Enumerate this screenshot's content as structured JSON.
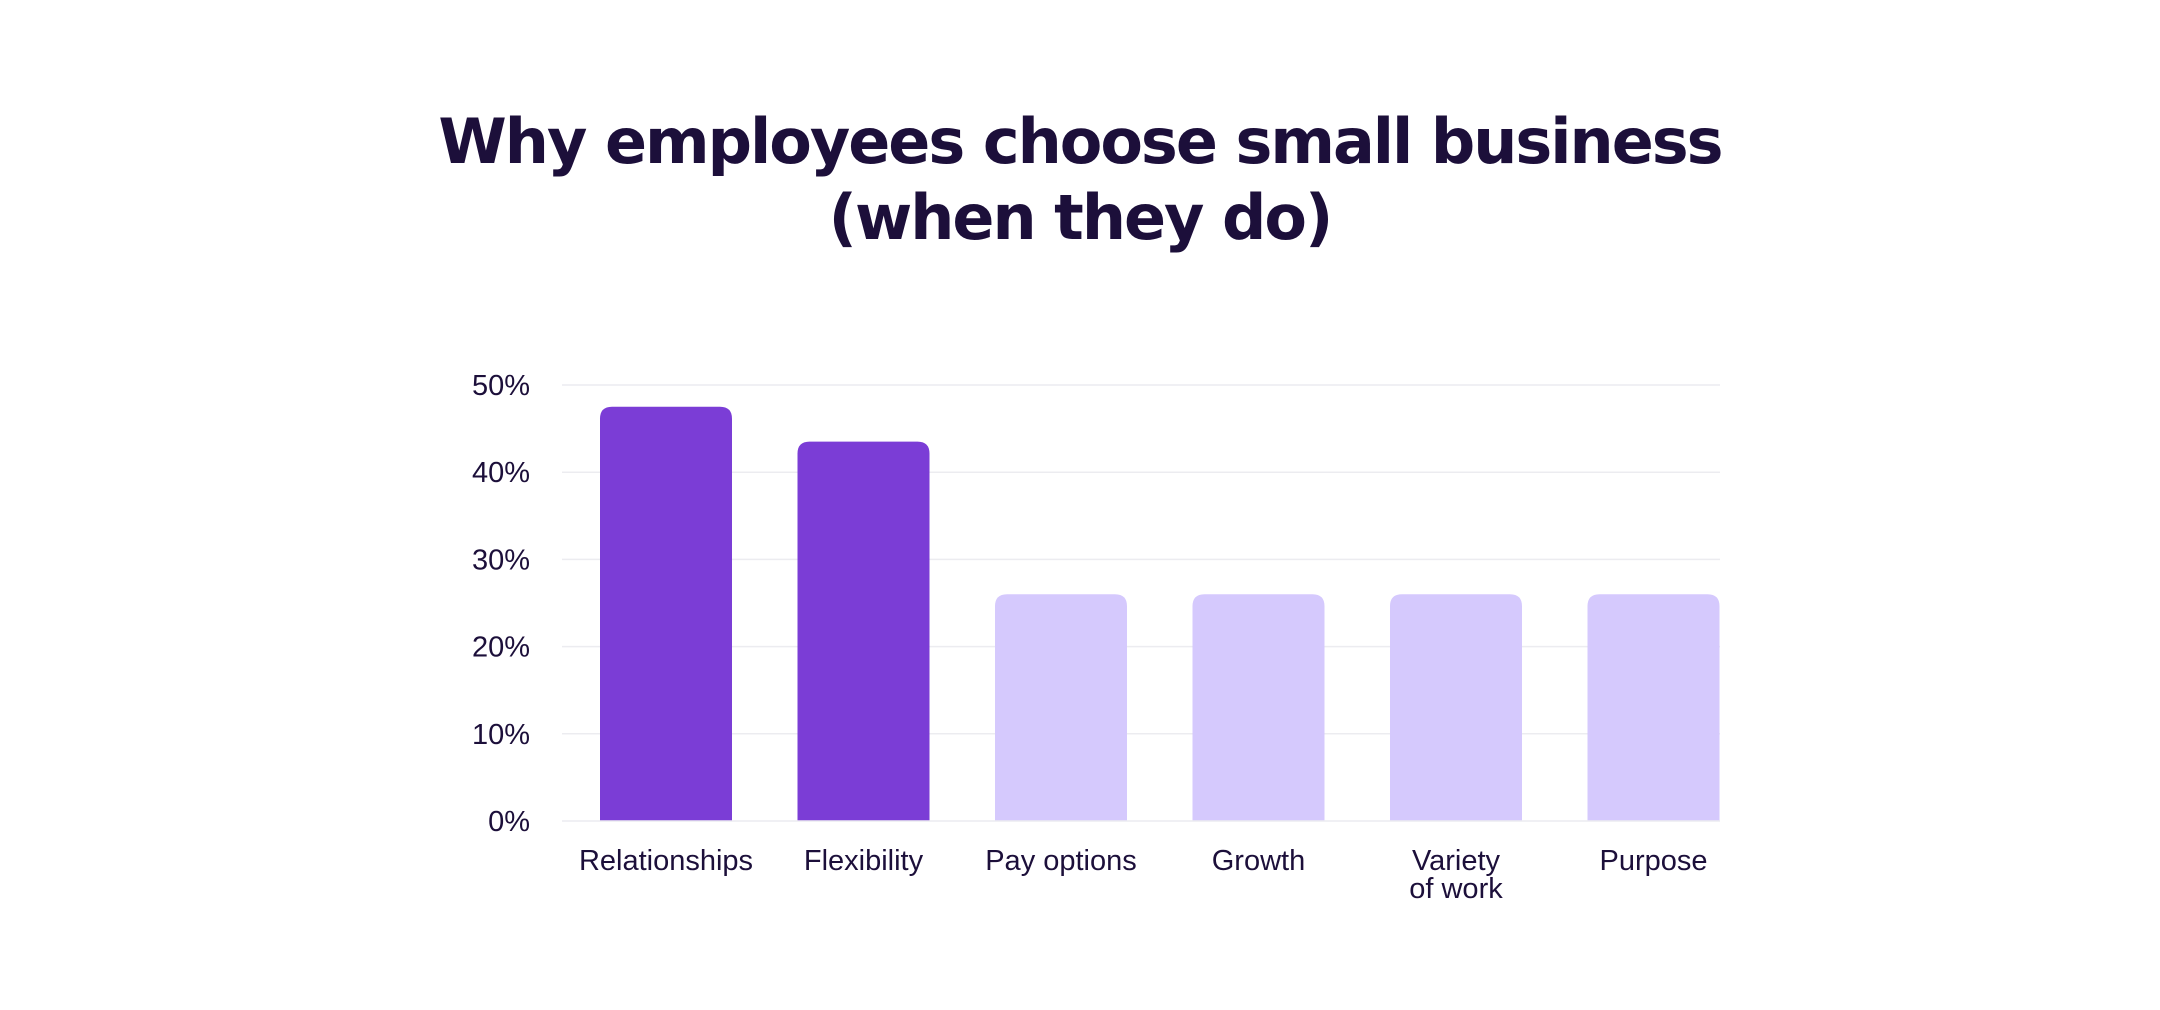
{
  "chart_data": {
    "type": "bar",
    "title": [
      "Why employees choose small business",
      "(when they do)"
    ],
    "categories": [
      [
        "Relationships"
      ],
      [
        "Flexibility"
      ],
      [
        "Pay options"
      ],
      [
        "Growth"
      ],
      [
        "Variety",
        "of work"
      ],
      [
        "Purpose"
      ]
    ],
    "values": [
      47.5,
      43.5,
      26,
      26,
      26,
      26
    ],
    "yticks": [
      "0%",
      "10%",
      "20%",
      "30%",
      "40%",
      "50%"
    ],
    "ylim": [
      0,
      50
    ],
    "grid": true,
    "xlabel": "",
    "ylabel": "",
    "colors": [
      "#7b3dd6",
      "#7b3dd6",
      "#d5c9fd",
      "#d5c9fd",
      "#d5c9fd",
      "#d5c9fd"
    ],
    "colors_note_key": {
      "highlight": "#7b3dd6",
      "muted": "#d5c9fd",
      "text": "#1c0f3a",
      "grid": "#ececf0"
    }
  }
}
